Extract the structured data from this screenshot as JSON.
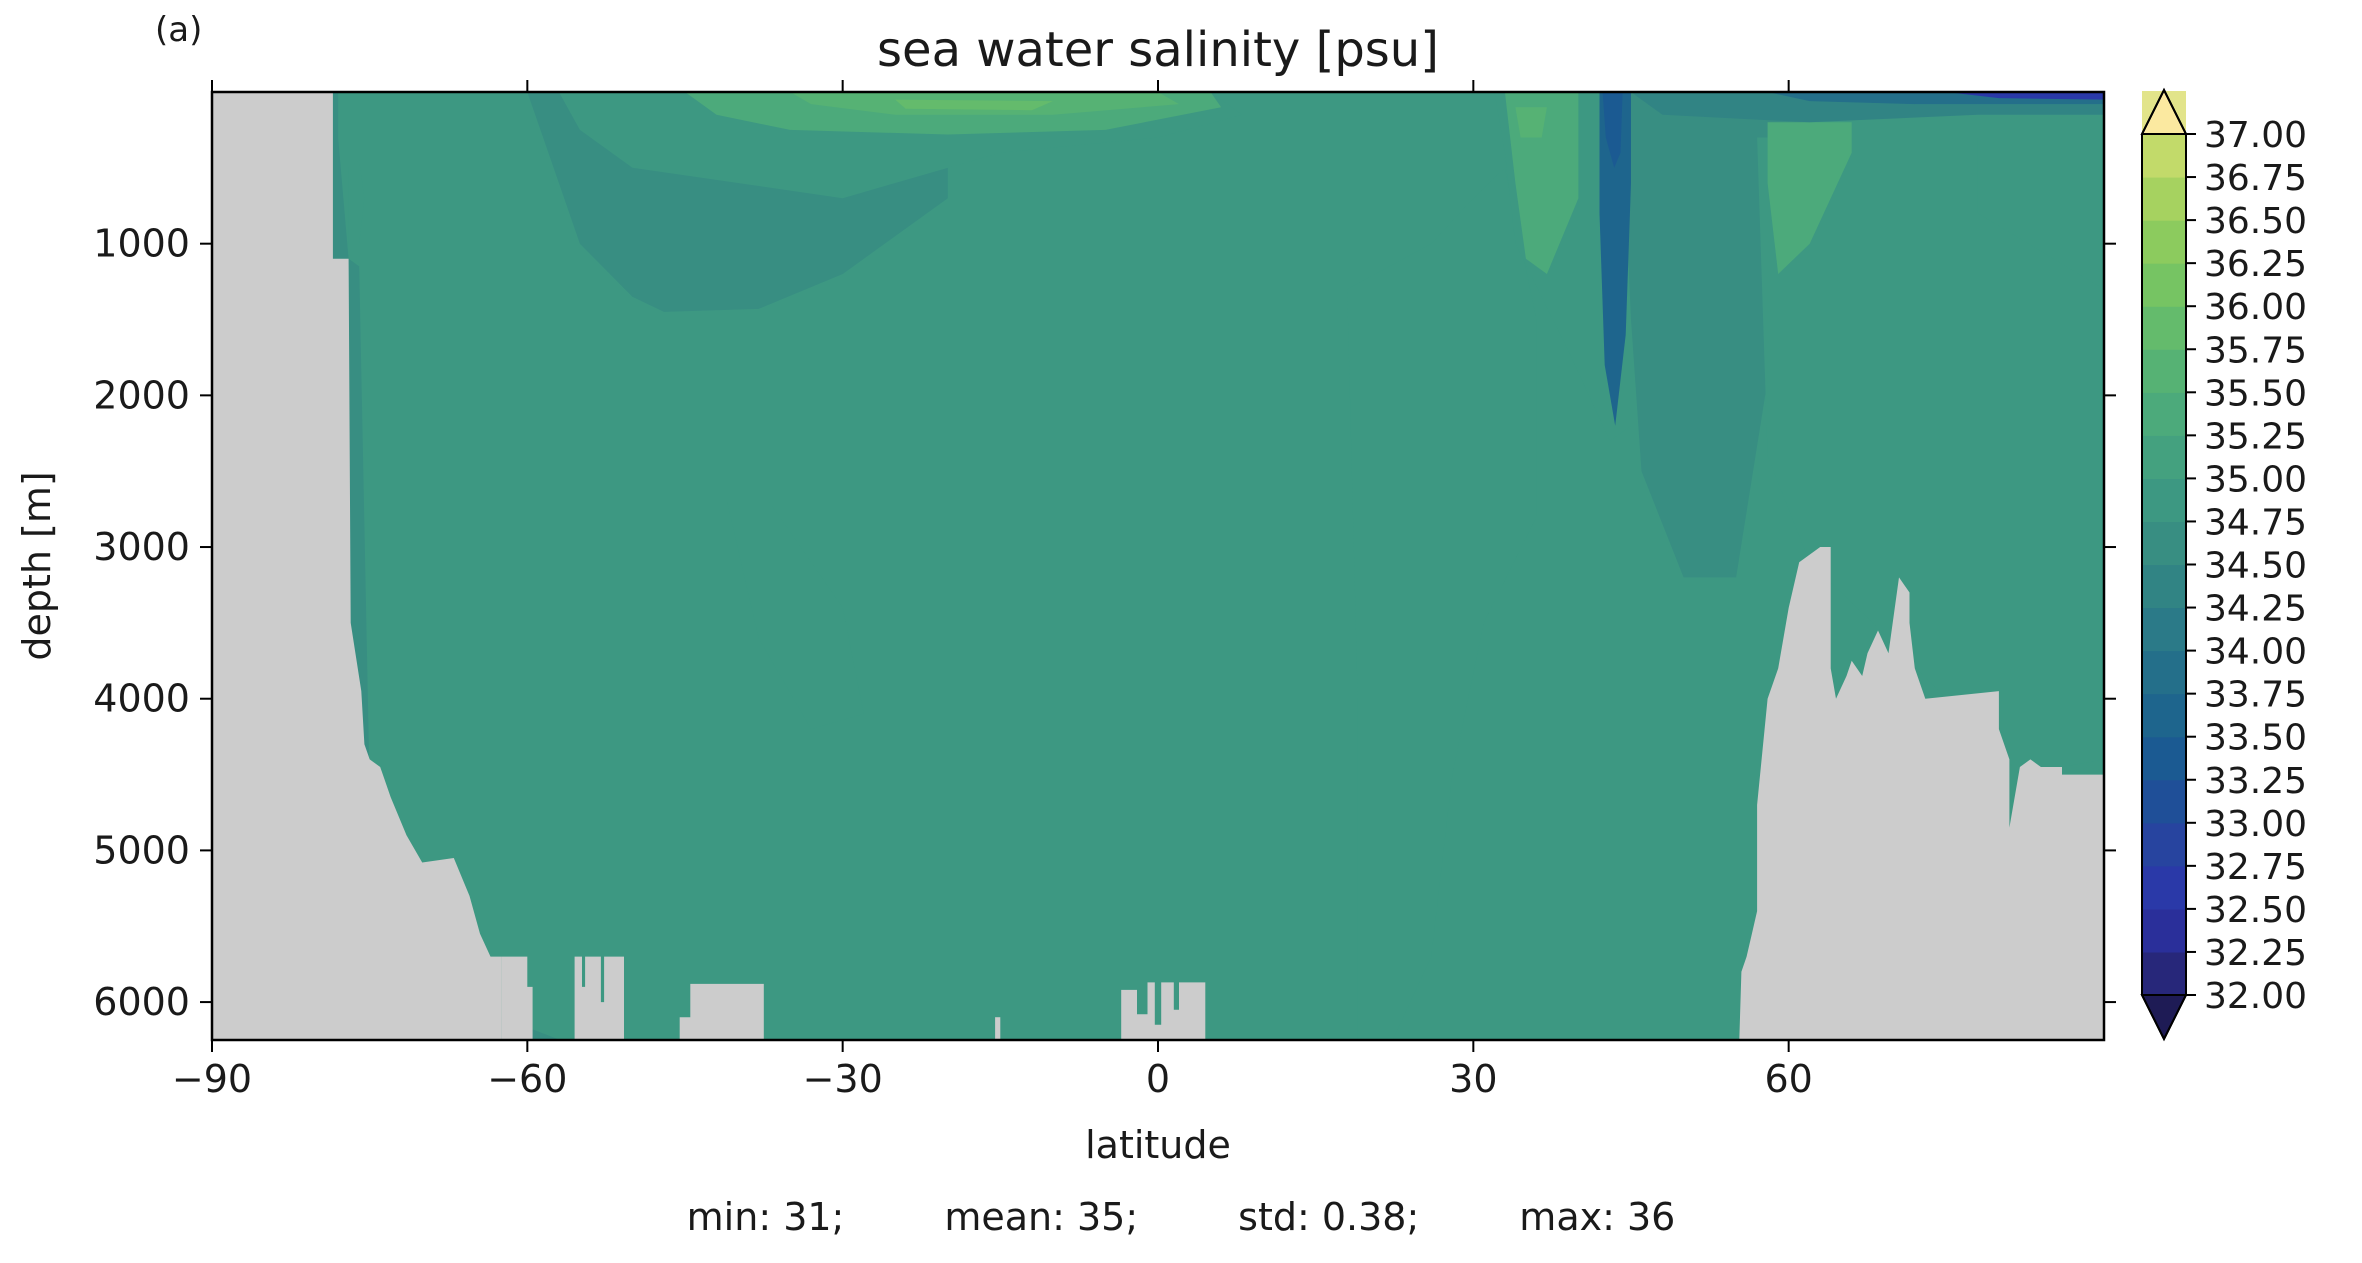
{
  "panel_label": "(a)",
  "chart_data": {
    "type": "heatmap",
    "title": "sea water salinity [psu]",
    "xlabel": "latitude",
    "ylabel": "depth [m]",
    "xlim": [
      -90,
      90
    ],
    "ylim": [
      6250,
      0
    ],
    "x_ticks": [
      -90,
      -60,
      -30,
      0,
      30,
      60
    ],
    "x_tick_labels": [
      "−90",
      "−60",
      "−30",
      "0",
      "30",
      "60"
    ],
    "y_ticks": [
      1000,
      2000,
      3000,
      4000,
      5000,
      6000
    ],
    "y_tick_labels": [
      "1000",
      "2000",
      "3000",
      "4000",
      "5000",
      "6000"
    ],
    "colorbar": {
      "levels": [
        32.0,
        32.25,
        32.5,
        32.75,
        33.0,
        33.25,
        33.5,
        33.75,
        34.0,
        34.25,
        34.5,
        34.75,
        35.0,
        35.25,
        35.5,
        35.75,
        36.0,
        36.25,
        36.5,
        36.75,
        37.0
      ],
      "labels": [
        "32.00",
        "32.25",
        "32.50",
        "32.75",
        "33.00",
        "33.25",
        "33.50",
        "33.75",
        "34.00",
        "34.25",
        "34.50",
        "34.75",
        "35.00",
        "35.25",
        "35.50",
        "35.75",
        "36.00",
        "36.25",
        "36.50",
        "36.75",
        "37.00"
      ],
      "colors": [
        "#27277a",
        "#2a2f9a",
        "#2a39a8",
        "#27449f",
        "#1f4f98",
        "#1b5a92",
        "#1e658d",
        "#246f8a",
        "#2b7a88",
        "#318484",
        "#388e82",
        "#3d9882",
        "#44a17f",
        "#4caa7b",
        "#56b274",
        "#64bb6c",
        "#76c463",
        "#8ccb5e",
        "#a6d260",
        "#c2da6a",
        "#e2e48a"
      ],
      "extend": "both",
      "over_color": "#fbe9a0",
      "under_color": "#1e1b55"
    },
    "land_color": "#cccccc",
    "field_summary": "Salinity mostly 34.75 to 35.0 psu; saltier surface water (35.5 to 36.0) between about 40S and 10N; low-salinity tongue near 43N down to about 2200 m; fresh surface water 60N to 90N; land/bathymetry in grey.",
    "stats": {
      "min": "min: 31;",
      "mean": "mean: 35;",
      "std": "std: 0.38;",
      "max": "max: 36"
    }
  }
}
